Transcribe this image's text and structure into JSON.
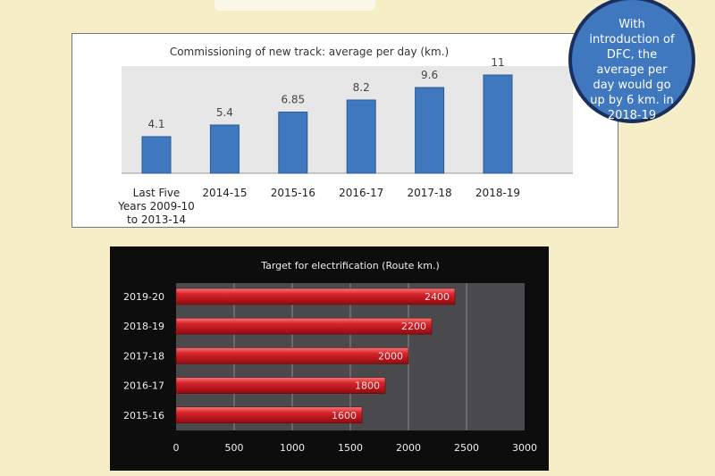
{
  "chart_data": [
    {
      "type": "bar",
      "title": "Commissioning of new track: average per day (km.)",
      "categories": [
        "Last Five Years 2009-10 to 2013-14",
        "2014-15",
        "2015-16",
        "2016-17",
        "2017-18",
        "2018-19"
      ],
      "category_lines": [
        [
          "Last Five",
          "Years 2009-10",
          "to 2013-14"
        ],
        [
          "2014-15"
        ],
        [
          "2015-16"
        ],
        [
          "2016-17"
        ],
        [
          "2017-18"
        ],
        [
          "2018-19"
        ]
      ],
      "values": [
        4.1,
        5.4,
        6.85,
        8.2,
        9.6,
        11
      ],
      "value_labels": [
        "4.1",
        "5.4",
        "6.85",
        "8.2",
        "9.6",
        "11"
      ],
      "ylim": [
        0,
        12
      ],
      "grid": false,
      "bar_color": "#3f78bf"
    },
    {
      "type": "bar",
      "orientation": "horizontal",
      "title": "Target for electrification  (Route km.)",
      "categories": [
        "2019-20",
        "2018-19",
        "2017-18",
        "2016-17",
        "2015-16"
      ],
      "values": [
        2400,
        2200,
        2000,
        1800,
        1600
      ],
      "xlim": [
        0,
        3000
      ],
      "xticks": [
        0,
        500,
        1000,
        1500,
        2000,
        2500,
        3000
      ],
      "grid": true,
      "bar_color": "#c8161d"
    }
  ],
  "callout": {
    "text": "With introduction of DFC, the average per day would go up by 6 km. in 2018-19"
  }
}
